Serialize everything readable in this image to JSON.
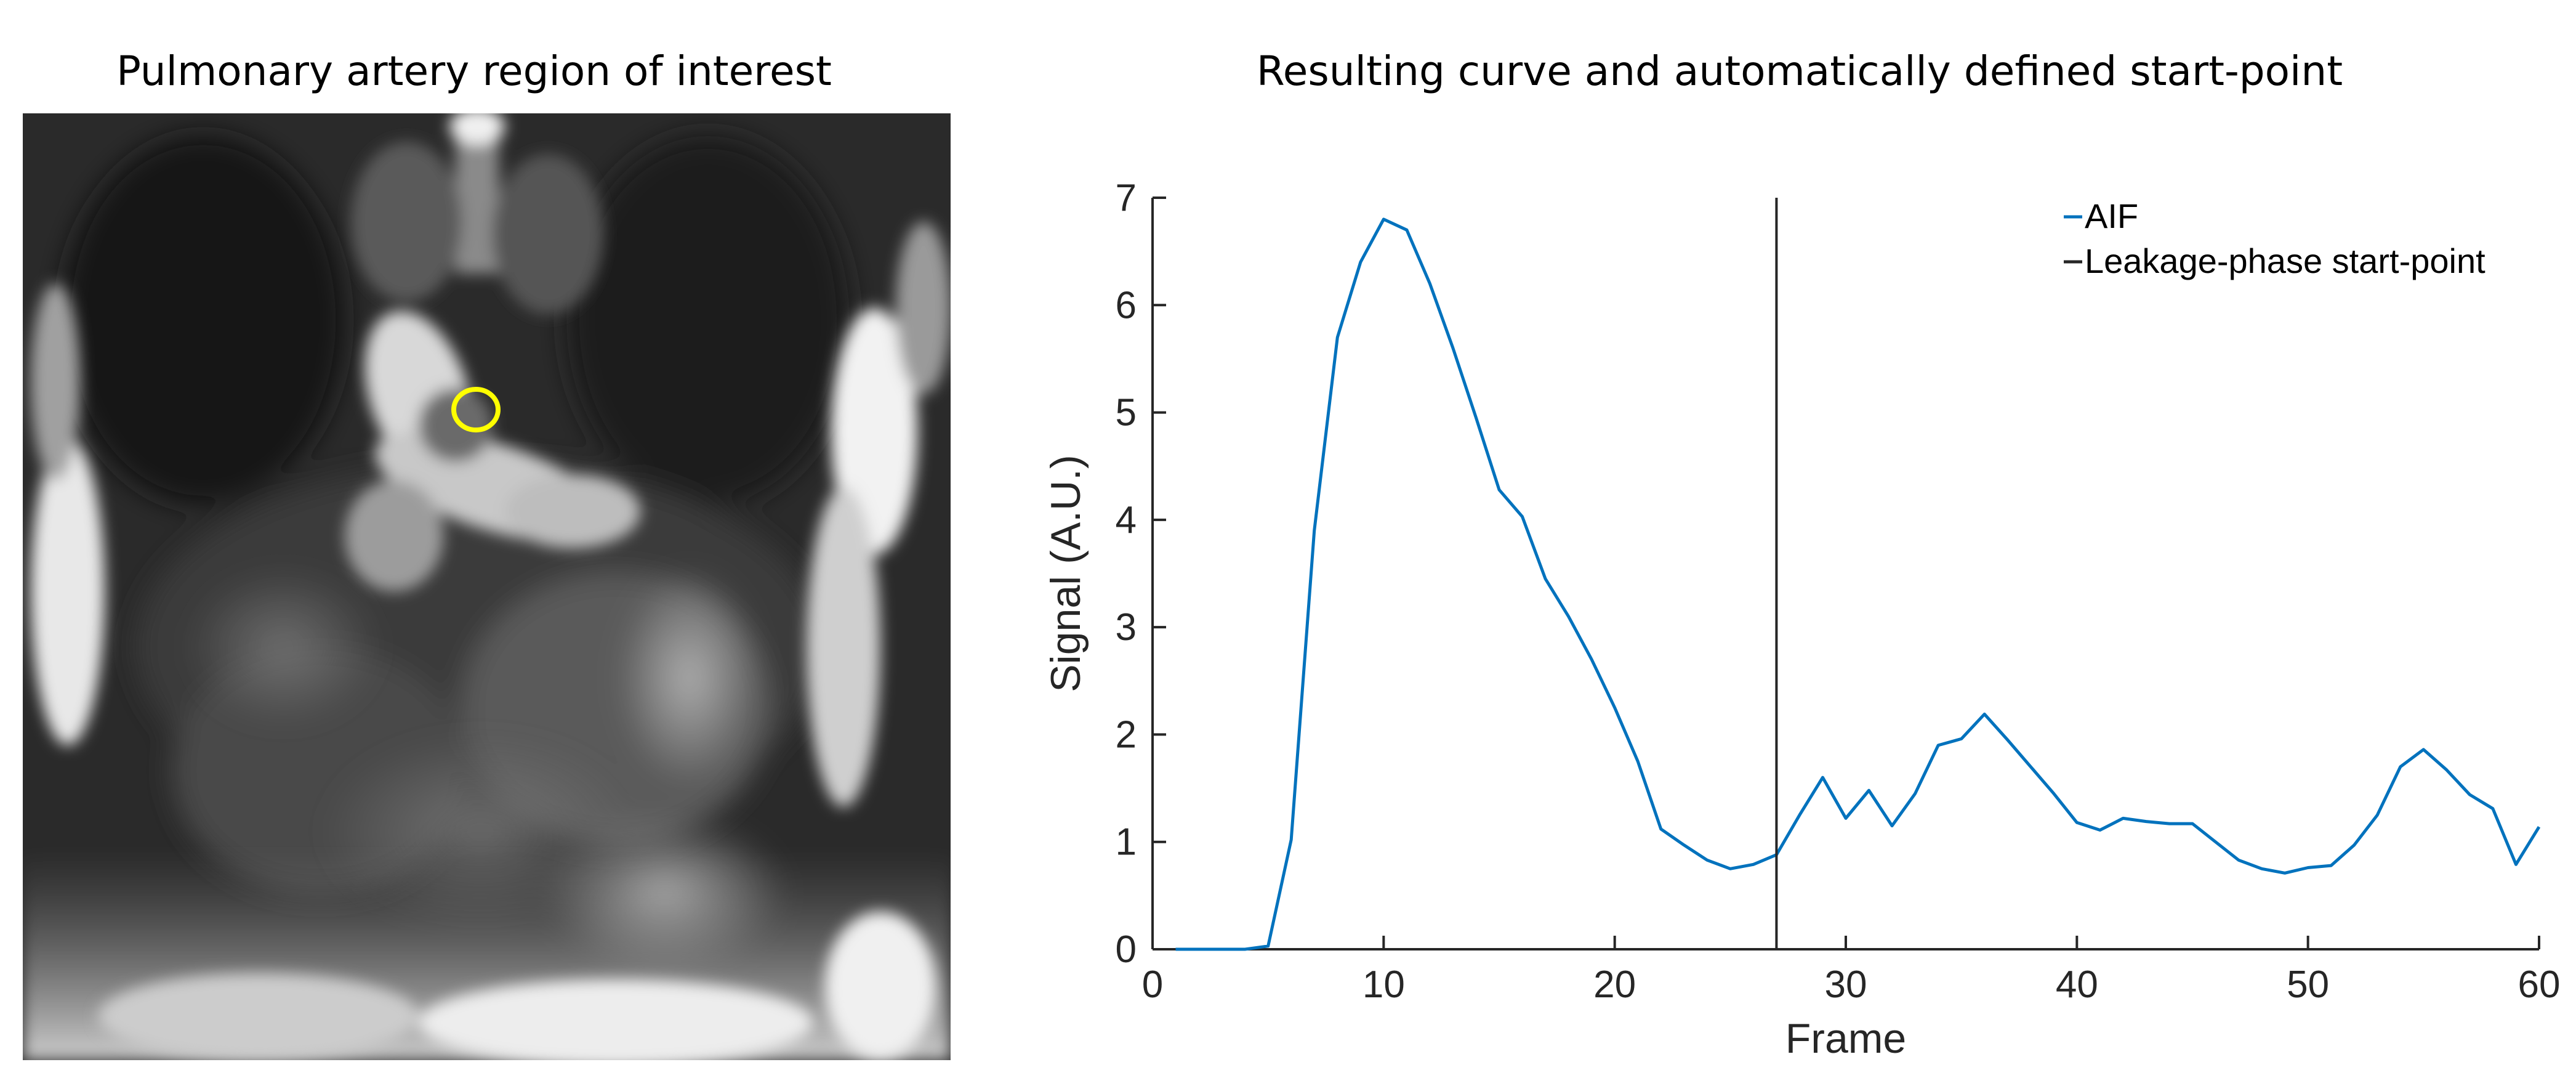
{
  "panels": {
    "left_title": "Pulmonary artery region of interest",
    "right_title": "Resulting curve and automatically defined start-point"
  },
  "roi": {
    "color": "#ffff00",
    "marker_icon": "roi-circle-icon"
  },
  "colors": {
    "aif_line": "#0072bd",
    "start_point_line": "#262626",
    "axis": "#262626"
  },
  "chart_data": {
    "type": "line",
    "title": "Resulting curve and automatically defined start-point",
    "xlabel": "Frame",
    "ylabel": "Signal (A.U.)",
    "xlim": [
      0,
      60
    ],
    "ylim": [
      0,
      7
    ],
    "xticks": [
      0,
      10,
      20,
      30,
      40,
      50,
      60
    ],
    "yticks": [
      0,
      1,
      2,
      3,
      4,
      5,
      6,
      7
    ],
    "grid": false,
    "legend_position": "top-right",
    "series": [
      {
        "name": "AIF",
        "color": "#0072bd",
        "x": [
          1,
          2,
          3,
          4,
          5,
          6,
          7,
          8,
          9,
          10,
          11,
          12,
          13,
          14,
          15,
          16,
          17,
          18,
          19,
          20,
          21,
          22,
          23,
          24,
          25,
          26,
          27,
          28,
          29,
          30,
          31,
          32,
          33,
          34,
          35,
          36,
          37,
          38,
          39,
          40,
          41,
          42,
          43,
          44,
          45,
          46,
          47,
          48,
          49,
          50,
          51,
          52,
          53,
          54,
          55,
          56,
          57,
          58,
          59,
          60
        ],
        "y": [
          0,
          0,
          0,
          0,
          0.03,
          1.02,
          3.9,
          5.7,
          6.4,
          6.8,
          6.7,
          6.2,
          5.6,
          4.95,
          4.28,
          4.03,
          3.45,
          3.1,
          2.7,
          2.25,
          1.75,
          1.12,
          0.97,
          0.83,
          0.75,
          0.79,
          0.88,
          1.25,
          1.6,
          1.22,
          1.48,
          1.15,
          1.45,
          1.9,
          1.96,
          2.19,
          1.95,
          1.7,
          1.45,
          1.18,
          1.11,
          1.22,
          1.19,
          1.17,
          1.17,
          1.0,
          0.83,
          0.75,
          0.71,
          0.76,
          0.78,
          0.97,
          1.25,
          1.7,
          1.86,
          1.67,
          1.44,
          1.31,
          0.79,
          1.14
        ]
      },
      {
        "name": "Leakage-phase start-point",
        "color": "#262626",
        "x_value": 27
      }
    ]
  }
}
